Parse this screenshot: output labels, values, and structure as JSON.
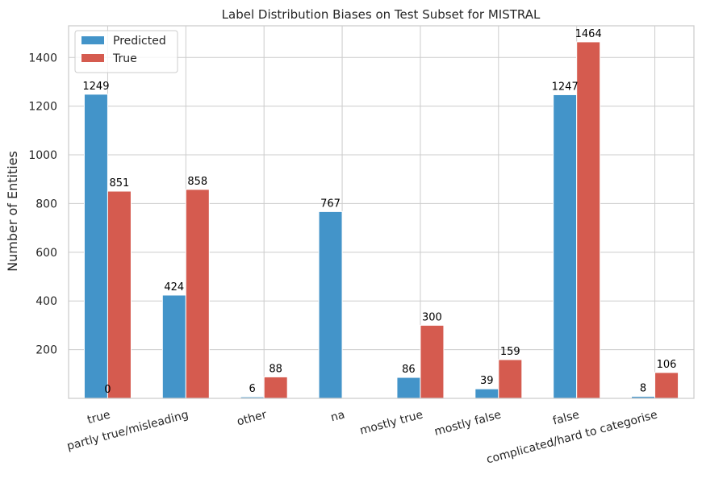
{
  "chart_data": {
    "type": "bar",
    "title": "Label Distribution Biases on Test Subset for MISTRAL",
    "xlabel": "",
    "ylabel": "Number of Entities",
    "categories": [
      "true",
      "partly true/misleading",
      "other",
      "na",
      "mostly true",
      "mostly false",
      "false",
      "complicated/hard to categorise"
    ],
    "series": [
      {
        "name": "Predicted",
        "color": "#4394c9",
        "values": [
          1249,
          424,
          6,
          767,
          86,
          39,
          1247,
          8
        ]
      },
      {
        "name": "True",
        "color": "#d55b4f",
        "values": [
          851,
          858,
          88,
          0,
          300,
          159,
          1464,
          106
        ]
      }
    ],
    "data_labels": [
      [
        "1249",
        "424",
        "6",
        "767",
        "86",
        "39",
        "1247",
        "8"
      ],
      [
        "851",
        "858",
        "88",
        "",
        "300",
        "159",
        "1464",
        "106"
      ]
    ],
    "stray_label": "0",
    "ylim": [
      0,
      1530
    ],
    "yticks": [
      200,
      400,
      600,
      800,
      1000,
      1200,
      1400
    ],
    "ytick_labels": [
      "200",
      "400",
      "600",
      "800",
      "1000",
      "1200",
      "1400"
    ],
    "grid": true,
    "legend_position": "top-left"
  }
}
